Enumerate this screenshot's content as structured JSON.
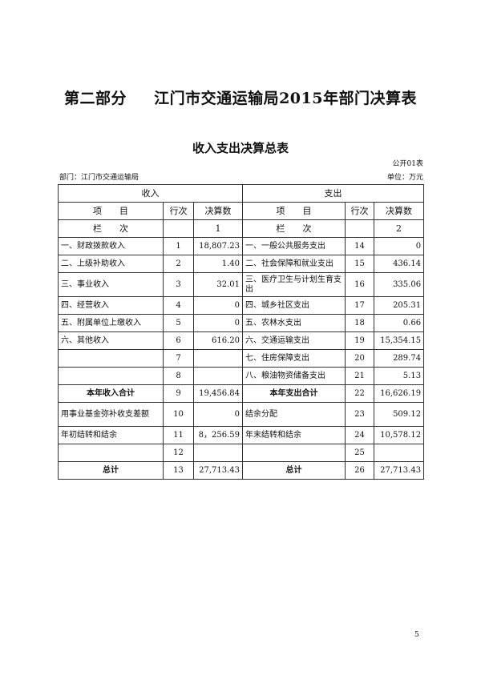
{
  "title_part": "第二部分",
  "title_main": "江门市交通运输局2015年部门决算表",
  "subtitle": "收入支出决算总表",
  "form_no": "公开01表",
  "department": "部门：江门市交通运输局",
  "unit": "单位：万元",
  "headers": {
    "income": "收入",
    "expense": "支出",
    "item": "项　　目",
    "row_no": "行次",
    "amount": "决算数",
    "column_label": "栏　　次",
    "col1": "1",
    "col2": "2"
  },
  "rows": [
    {
      "in_item": "一、财政拨款收入",
      "in_no": "1",
      "in_val": "18,807.23",
      "ex_item": "一、一般公共服务支出",
      "ex_no": "14",
      "ex_val": "0"
    },
    {
      "in_item": "二、上级补助收入",
      "in_no": "2",
      "in_val": "1.40",
      "ex_item": "二、社会保障和就业支出",
      "ex_no": "15",
      "ex_val": "436.14"
    },
    {
      "in_item": "三、事业收入",
      "in_no": "3",
      "in_val": "32.01",
      "ex_item": "三、医疗卫生与计划生育支出",
      "ex_no": "16",
      "ex_val": "335.06",
      "tall": true
    },
    {
      "in_item": "四、经营收入",
      "in_no": "4",
      "in_val": "0",
      "ex_item": "四、城乡社区支出",
      "ex_no": "17",
      "ex_val": "205.31"
    },
    {
      "in_item": "五、附属单位上缴收入",
      "in_no": "5",
      "in_val": "0",
      "ex_item": "五、农林水支出",
      "ex_no": "18",
      "ex_val": "0.66"
    },
    {
      "in_item": "六、其他收入",
      "in_no": "6",
      "in_val": "616.20",
      "ex_item": "六、交通运输支出",
      "ex_no": "19",
      "ex_val": "15,354.15"
    },
    {
      "in_item": "",
      "in_no": "7",
      "in_val": "",
      "ex_item": "七、住房保障支出",
      "ex_no": "20",
      "ex_val": "289.74"
    },
    {
      "in_item": "",
      "in_no": "8",
      "in_val": "",
      "ex_item": "八、粮油物资储备支出",
      "ex_no": "21",
      "ex_val": "5.13"
    },
    {
      "in_item": "本年收入合计",
      "in_no": "9",
      "in_val": "19,456.84",
      "ex_item": "本年支出合计",
      "ex_no": "22",
      "ex_val": "16,626.19",
      "bold": true
    },
    {
      "in_item": "用事业基金弥补收支差额",
      "in_no": "10",
      "in_val": "0",
      "ex_item": "结余分配",
      "ex_no": "23",
      "ex_val": "509.12",
      "tall": true
    },
    {
      "in_item": "年初结转和结余",
      "in_no": "11",
      "in_val": "8，256.59",
      "ex_item": "年末结转和结余",
      "ex_no": "24",
      "ex_val": "10,578.12"
    },
    {
      "in_item": "",
      "in_no": "12",
      "in_val": "",
      "ex_item": "",
      "ex_no": "25",
      "ex_val": ""
    },
    {
      "in_item": "总计",
      "in_no": "13",
      "in_val": "27,713.43",
      "ex_item": "总计",
      "ex_no": "26",
      "ex_val": "27,713.43",
      "bold": true
    }
  ],
  "page_number": "5"
}
